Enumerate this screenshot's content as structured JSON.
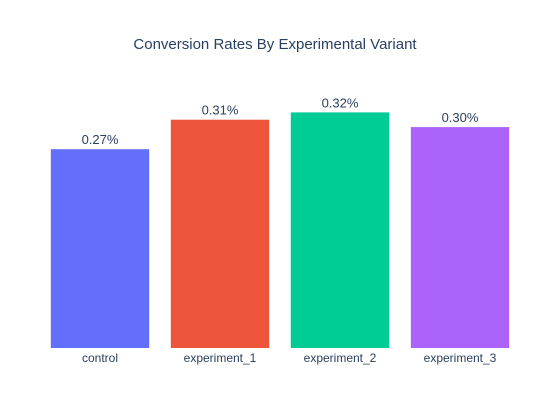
{
  "chart_data": {
    "type": "bar",
    "title": "Conversion Rates By Experimental Variant",
    "xlabel": "",
    "ylabel": "",
    "categories": [
      "control",
      "experiment_1",
      "experiment_2",
      "experiment_3"
    ],
    "values": [
      0.27,
      0.31,
      0.32,
      0.3
    ],
    "value_labels": [
      "0.27%",
      "0.31%",
      "0.32%",
      "0.30%"
    ],
    "colors": [
      "#636efa",
      "#ef553b",
      "#00cc96",
      "#ab63fa"
    ],
    "ylim": [
      0,
      0.3368
    ],
    "grid": false,
    "legend": "none"
  }
}
